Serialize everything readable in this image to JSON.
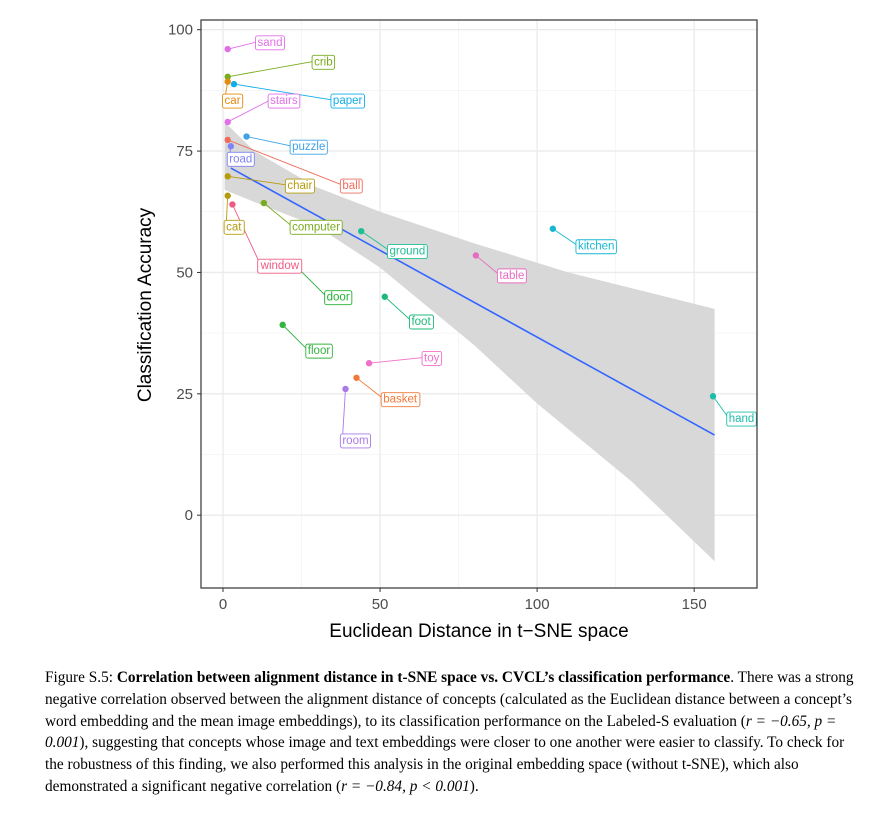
{
  "chart_data": {
    "type": "scatter",
    "xlabel": "Euclidean Distance in t−SNE space",
    "ylabel": "Classification Accuracy",
    "xlim": [
      -7,
      170
    ],
    "ylim": [
      -15,
      102
    ],
    "x_ticks": [
      0,
      50,
      100,
      150
    ],
    "y_ticks": [
      0,
      25,
      50,
      75,
      100
    ],
    "x_tick_labels": [
      "0",
      "50",
      "100",
      "150"
    ],
    "y_tick_labels": [
      "0",
      "25",
      "50",
      "75",
      "100"
    ],
    "grid": true,
    "colors": {
      "regression_line": "#3366ff",
      "confidence_band": "#d6d6d6",
      "panel_border": "#333333",
      "grid": "#ebebeb"
    },
    "regression": {
      "x_start": 2.5,
      "y_start": 71.5,
      "x_end": 156.5,
      "y_end": 16.5,
      "band_upper": [
        [
          0.5,
          81
        ],
        [
          10,
          75
        ],
        [
          30,
          67.5
        ],
        [
          50,
          62.5
        ],
        [
          80,
          56
        ],
        [
          110,
          50
        ],
        [
          156.5,
          42.5
        ]
      ],
      "band_lower": [
        [
          156.5,
          -9.5
        ],
        [
          130,
          7
        ],
        [
          100,
          23
        ],
        [
          80,
          35
        ],
        [
          50,
          51
        ],
        [
          30,
          59.5
        ],
        [
          10,
          64.5
        ],
        [
          0.5,
          67
        ]
      ]
    },
    "points": [
      {
        "label": "sand",
        "x": 1.5,
        "y": 96,
        "color": "#e16fe8",
        "lx": 11,
        "ly": 97.5
      },
      {
        "label": "crib",
        "x": 1.5,
        "y": 90.3,
        "color": "#7aab1e",
        "lx": 29,
        "ly": 93.5
      },
      {
        "label": "car",
        "x": 1.5,
        "y": 89.3,
        "color": "#e48a0e",
        "lx": 0.5,
        "ly": 85.5
      },
      {
        "label": "paper",
        "x": 3.5,
        "y": 88.8,
        "color": "#10aee8",
        "lx": 35,
        "ly": 85.5
      },
      {
        "label": "stairs",
        "x": 1.5,
        "y": 81,
        "color": "#e16fe8",
        "lx": 15,
        "ly": 85.5
      },
      {
        "label": "puzzle",
        "x": 7.5,
        "y": 78,
        "color": "#3fa2e9",
        "lx": 22,
        "ly": 76
      },
      {
        "label": "ball",
        "x": 1.5,
        "y": 77.3,
        "color": "#ee6c5c",
        "lx": 38,
        "ly": 68
      },
      {
        "label": "road",
        "x": 2.5,
        "y": 76,
        "color": "#8183f4",
        "lx": 2,
        "ly": 73.5
      },
      {
        "label": "chair",
        "x": 1.5,
        "y": 69.8,
        "color": "#b59c0e",
        "lx": 20.5,
        "ly": 68
      },
      {
        "label": "cat",
        "x": 1.5,
        "y": 65.8,
        "color": "#b59c0e",
        "lx": 1,
        "ly": 59.5
      },
      {
        "label": "computer",
        "x": 13,
        "y": 64.3,
        "color": "#7aab1e",
        "lx": 22,
        "ly": 59.5
      },
      {
        "label": "window",
        "x": 3,
        "y": 64,
        "color": "#ef5a82",
        "lx": 12,
        "ly": 51.5
      },
      {
        "label": "ground",
        "x": 44,
        "y": 58.5,
        "color": "#1fbf94",
        "lx": 53,
        "ly": 54.5
      },
      {
        "label": "kitchen",
        "x": 105,
        "y": 59,
        "color": "#17b7d1",
        "lx": 113,
        "ly": 55.5
      },
      {
        "label": "door",
        "x": 24,
        "y": 50.8,
        "color": "#24af34",
        "lx": 33,
        "ly": 45
      },
      {
        "label": "table",
        "x": 80.5,
        "y": 53.5,
        "color": "#e56cc0",
        "lx": 88,
        "ly": 49.5
      },
      {
        "label": "foot",
        "x": 51.5,
        "y": 45,
        "color": "#1eb97a",
        "lx": 60,
        "ly": 40
      },
      {
        "label": "floor",
        "x": 19,
        "y": 39.2,
        "color": "#33b33f",
        "lx": 27,
        "ly": 34
      },
      {
        "label": "toy",
        "x": 46.5,
        "y": 31.3,
        "color": "#f070c8",
        "lx": 64,
        "ly": 32.5
      },
      {
        "label": "basket",
        "x": 42.5,
        "y": 28.3,
        "color": "#f07a3a",
        "lx": 51,
        "ly": 24
      },
      {
        "label": "room",
        "x": 39,
        "y": 26,
        "color": "#a97ae8",
        "lx": 38,
        "ly": 15.5
      },
      {
        "label": "hand",
        "x": 156,
        "y": 24.5,
        "color": "#1cbea8",
        "lx": 161,
        "ly": 20
      }
    ]
  },
  "caption": {
    "figure_label": "Figure S.5:",
    "title": "Correlation between alignment distance in t-SNE space vs. CVCL’s classification performance",
    "title_end": ".",
    "body_1": "There was a strong negative correlation observed between the alignment distance of concepts (calculated as the Euclidean distance between a concept’s word embedding and the mean image embeddings), to its classification performance on the Labeled-S evaluation (",
    "math_1": "r = −0.65, p = 0.001",
    "body_2": "), suggesting that concepts whose image and text embeddings were closer to one another were easier to classify. To check for the robustness of this finding, we also performed this analysis in the original embedding space (without t-SNE), which also demonstrated a significant negative correlation (",
    "math_2": "r = −0.84, p < 0.001",
    "body_3": ")."
  }
}
